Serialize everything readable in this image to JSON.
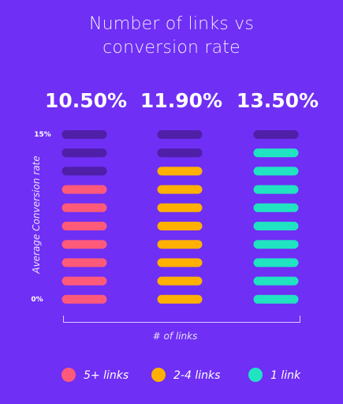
{
  "chart_data": {
    "type": "bar",
    "title_lines": [
      "Number of links vs",
      "conversion rate"
    ],
    "xlabel": "# of links",
    "ylabel": "Average Conversion rate",
    "ylim": [
      0,
      15
    ],
    "y_ticks": [
      "15%",
      "0%"
    ],
    "total_segments": 10,
    "categories": [
      "5+ links",
      "2-4 links",
      "1 link"
    ],
    "values": [
      10.5,
      11.9,
      13.5
    ],
    "value_labels": [
      "10.50%",
      "11.90%",
      "13.50%"
    ],
    "filled_segments": [
      7,
      8,
      9
    ],
    "colors": [
      "#ff5a7a",
      "#ffb000",
      "#20e3c2"
    ],
    "empty_color": "#4f1fa8",
    "legend_position": "bottom",
    "legend": [
      {
        "label": "5+ links",
        "color": "#ff5a7a"
      },
      {
        "label": "2-4 links",
        "color": "#ffb000"
      },
      {
        "label": "1 link",
        "color": "#20e3c2"
      }
    ]
  }
}
